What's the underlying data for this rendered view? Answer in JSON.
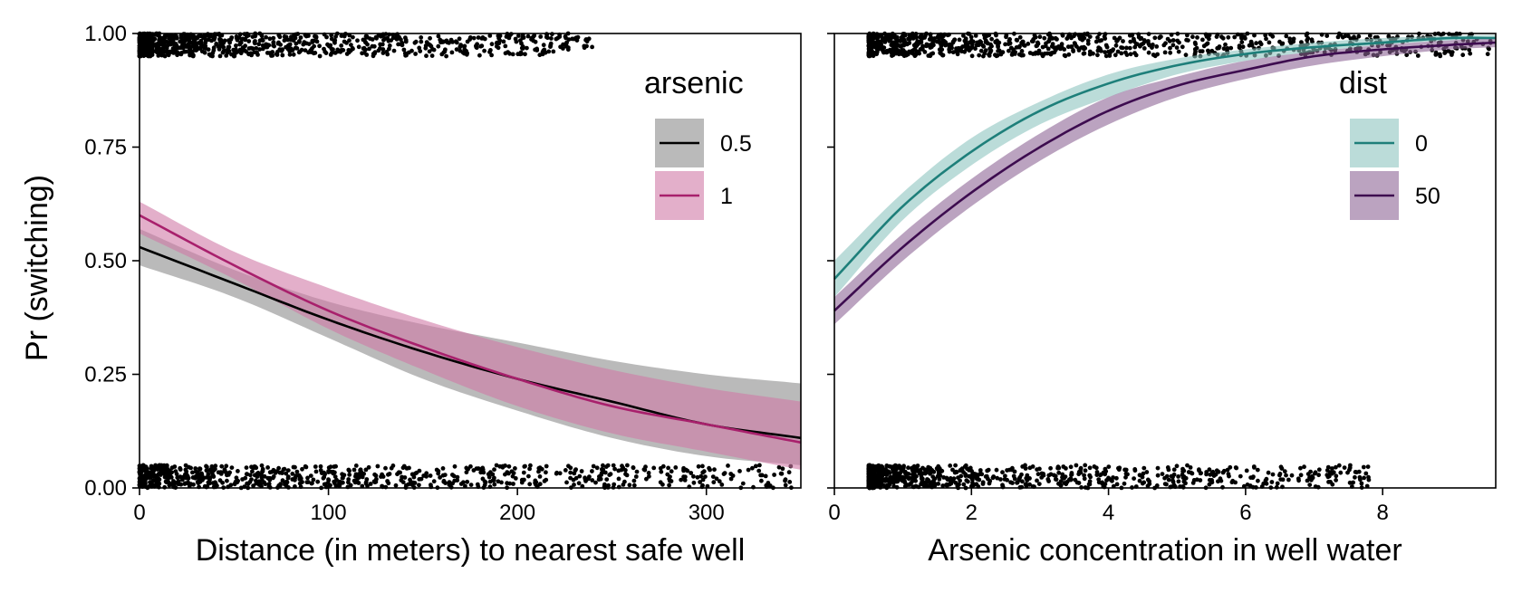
{
  "chart_data": {
    "type": "line",
    "y_axis": {
      "label": "Pr (switching)",
      "ylim": [
        0,
        1
      ],
      "ticks": [
        0,
        0.25,
        0.5,
        0.75,
        1
      ],
      "tick_labels": [
        "0.00",
        "0.25",
        "0.50",
        "0.75",
        "1.00"
      ]
    },
    "panels": [
      {
        "xlabel": "Distance (in meters) to nearest safe well",
        "xlim": [
          0,
          350
        ],
        "x_ticks": [
          0,
          100,
          200,
          300
        ],
        "x_tick_labels": [
          "0",
          "100",
          "200",
          "300"
        ],
        "legend": {
          "title": "arsenic",
          "position": "top-right"
        },
        "series": [
          {
            "name": "0.5",
            "color": "#000000",
            "band_color": "#8c8c8c",
            "x": [
              0,
              50,
              100,
              150,
              200,
              250,
              300,
              350
            ],
            "y": [
              0.53,
              0.45,
              0.37,
              0.3,
              0.24,
              0.19,
              0.14,
              0.11
            ],
            "lower": [
              0.49,
              0.42,
              0.33,
              0.24,
              0.17,
              0.11,
              0.07,
              0.05
            ],
            "upper": [
              0.57,
              0.48,
              0.41,
              0.36,
              0.32,
              0.28,
              0.25,
              0.23
            ]
          },
          {
            "name": "1",
            "color": "#a8206c",
            "band_color": "#d17aa6",
            "x": [
              0,
              50,
              100,
              150,
              200,
              250,
              300,
              350
            ],
            "y": [
              0.6,
              0.49,
              0.39,
              0.31,
              0.24,
              0.18,
              0.14,
              0.1
            ],
            "lower": [
              0.56,
              0.46,
              0.35,
              0.26,
              0.18,
              0.12,
              0.08,
              0.04
            ],
            "upper": [
              0.63,
              0.52,
              0.44,
              0.37,
              0.31,
              0.26,
              0.22,
              0.19
            ]
          }
        ],
        "jitter_seed": 7
      },
      {
        "xlabel": "Arsenic concentration in well water",
        "xlim": [
          0,
          9.65
        ],
        "x_ticks": [
          0,
          2,
          4,
          6,
          8
        ],
        "x_tick_labels": [
          "0",
          "2",
          "4",
          "6",
          "8"
        ],
        "legend": {
          "title": "dist",
          "position": "top-right"
        },
        "series": [
          {
            "name": "0",
            "color": "#1e7f7a",
            "band_color": "#8ec5c0",
            "x": [
              0,
              1,
              2,
              3,
              4,
              5,
              6,
              7,
              8,
              9,
              9.65
            ],
            "y": [
              0.46,
              0.62,
              0.74,
              0.83,
              0.89,
              0.93,
              0.955,
              0.97,
              0.98,
              0.99,
              0.99
            ],
            "lower": [
              0.42,
              0.59,
              0.71,
              0.8,
              0.86,
              0.91,
              0.94,
              0.96,
              0.975,
              0.985,
              0.99
            ],
            "upper": [
              0.5,
              0.65,
              0.77,
              0.85,
              0.91,
              0.945,
              0.965,
              0.98,
              0.99,
              0.995,
              0.997
            ]
          },
          {
            "name": "50",
            "color": "#3d0c4f",
            "band_color": "#8d6596",
            "x": [
              0,
              1,
              2,
              3,
              4,
              5,
              6,
              7,
              8,
              9,
              9.65
            ],
            "y": [
              0.39,
              0.53,
              0.65,
              0.75,
              0.83,
              0.885,
              0.92,
              0.95,
              0.965,
              0.975,
              0.98
            ],
            "lower": [
              0.36,
              0.5,
              0.62,
              0.72,
              0.8,
              0.86,
              0.9,
              0.93,
              0.95,
              0.965,
              0.97
            ],
            "upper": [
              0.42,
              0.56,
              0.68,
              0.78,
              0.86,
              0.905,
              0.94,
              0.96,
              0.975,
              0.985,
              0.99
            ]
          }
        ],
        "jitter_seed": 13
      }
    ]
  }
}
